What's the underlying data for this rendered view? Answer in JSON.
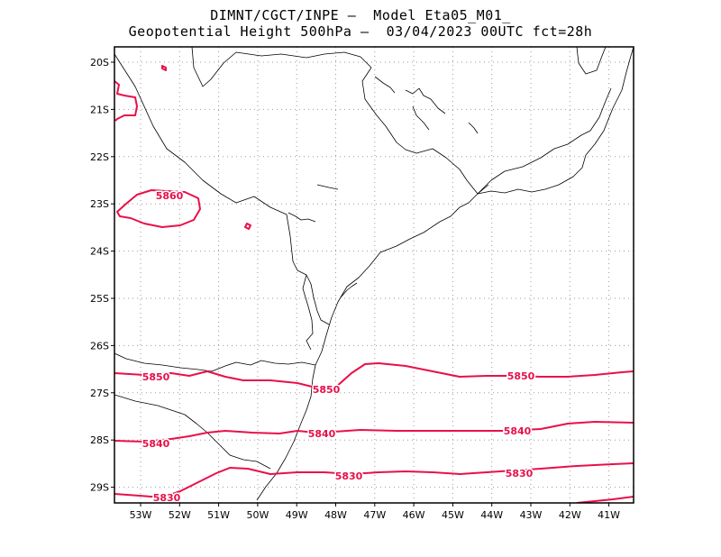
{
  "header": {
    "title_line1": "DIMNT/CGCT/INPE –  Model Eta05_M01_",
    "title_line2": "Geopotential Height 500hPa –  03/04/2023 00UTC fct=28h"
  },
  "map": {
    "contour_color": "#e8104a",
    "coast_color": "#000000",
    "grid_style": "dotted",
    "lat_labels": [
      "20S",
      "21S",
      "22S",
      "23S",
      "24S",
      "25S",
      "26S",
      "27S",
      "28S",
      "29S"
    ],
    "lon_labels": [
      "53W",
      "52W",
      "51W",
      "50W",
      "49W",
      "48W",
      "47W",
      "46W",
      "45W",
      "44W",
      "43W",
      "42W",
      "41W"
    ],
    "contour_labels": [
      {
        "text": "5860"
      },
      {
        "text": "5850"
      },
      {
        "text": "5850"
      },
      {
        "text": "5850"
      },
      {
        "text": "5840"
      },
      {
        "text": "5840"
      },
      {
        "text": "5840"
      },
      {
        "text": "5830"
      },
      {
        "text": "5830"
      },
      {
        "text": "5830"
      }
    ]
  }
}
